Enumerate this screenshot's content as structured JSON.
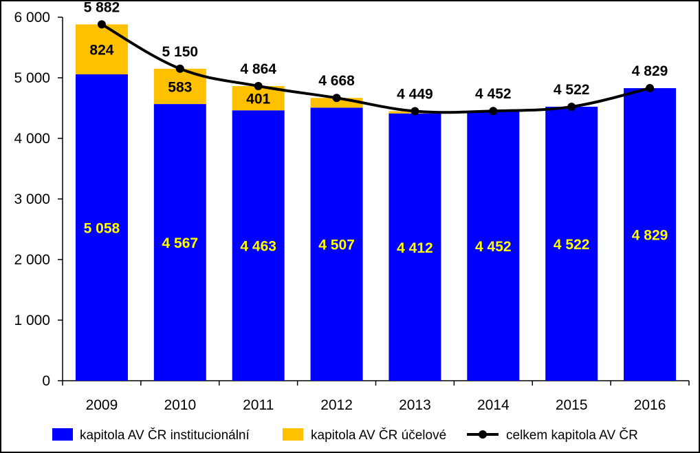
{
  "chart_data": {
    "type": "bar",
    "stacked": true,
    "categories": [
      "2009",
      "2010",
      "2011",
      "2012",
      "2013",
      "2014",
      "2015",
      "2016"
    ],
    "series": [
      {
        "name": "kapitola AV ČR institucionální",
        "kind": "bar",
        "color": "#0000FF",
        "label_color": "#FFFF00",
        "values": [
          5058,
          4567,
          4463,
          4507,
          4412,
          4452,
          4522,
          4829
        ],
        "labels": [
          "5 058",
          "4 567",
          "4 463",
          "4 507",
          "4 412",
          "4 452",
          "4 522",
          "4 829"
        ]
      },
      {
        "name": "kapitola AV ČR účelové",
        "kind": "bar",
        "color": "#FFC000",
        "label_color": "#000000",
        "values": [
          824,
          583,
          401,
          161,
          37,
          0,
          0,
          0
        ],
        "labels": [
          "824",
          "583",
          "401",
          "",
          "",
          "",
          "",
          ""
        ]
      },
      {
        "name": "celkem kapitola AV ČR",
        "kind": "line",
        "color": "#000000",
        "values": [
          5882,
          5150,
          4864,
          4668,
          4449,
          4452,
          4522,
          4829
        ],
        "labels": [
          "5 882",
          "5 150",
          "4 864",
          "4 668",
          "4 449",
          "4 452",
          "4 522",
          "4 829"
        ]
      }
    ],
    "ylim": [
      0,
      6000
    ],
    "yticks": [
      0,
      1000,
      2000,
      3000,
      4000,
      5000,
      6000
    ],
    "ytick_labels": [
      "0",
      "1 000",
      "2 000",
      "3 000",
      "4 000",
      "5 000",
      "6 000"
    ],
    "grid": false,
    "legend_position": "bottom"
  }
}
